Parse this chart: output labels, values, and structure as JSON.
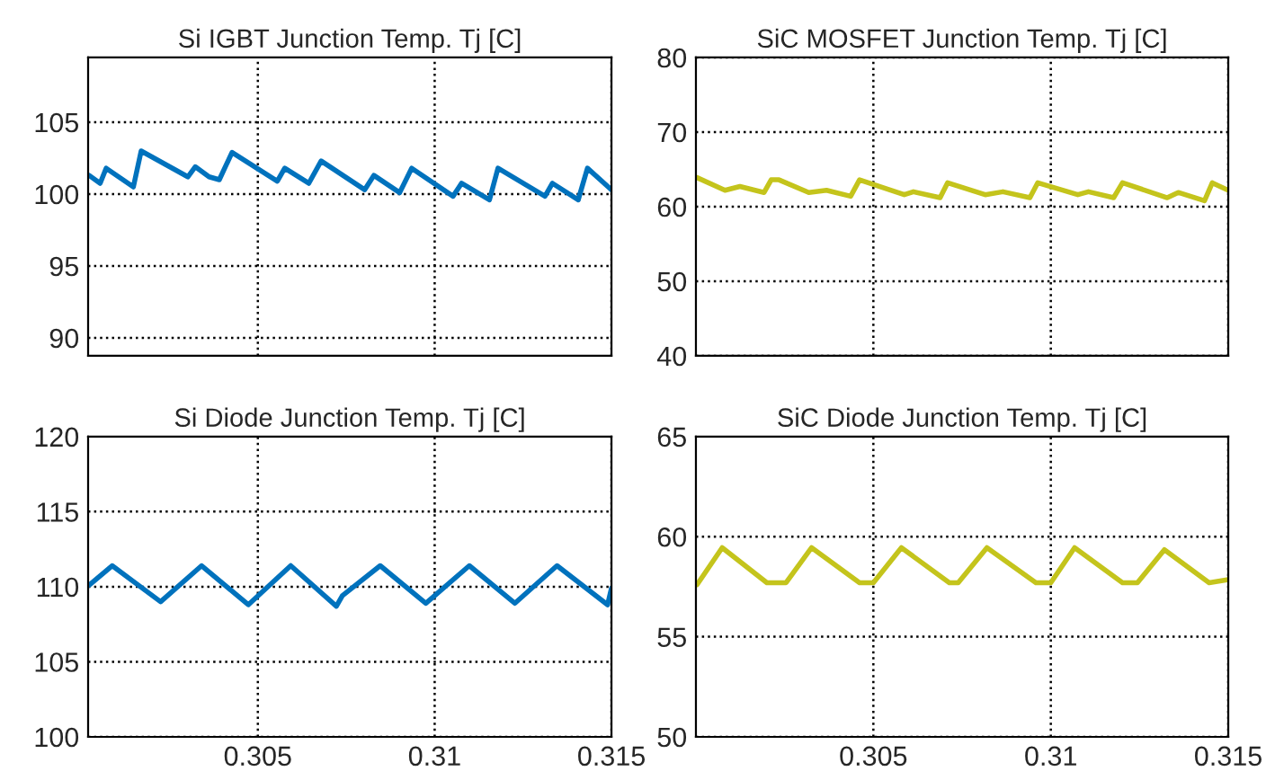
{
  "chart_data": [
    {
      "type": "line",
      "title": "Si IGBT Junction Temp. Tj [C]",
      "xlim": [
        0.3002,
        0.315
      ],
      "xticks": [
        0.305,
        0.31,
        0.315
      ],
      "ylim": [
        88.75,
        109.5
      ],
      "yticks": [
        90,
        95,
        100,
        105
      ],
      "tick_labels": "y",
      "grid": true,
      "line_style": "solid",
      "series": [
        {
          "color": "#0072bd",
          "x": [
            0.30023,
            0.30054,
            0.30071,
            0.30148,
            0.3017,
            0.30302,
            0.30323,
            0.30362,
            0.30391,
            0.30427,
            0.30555,
            0.30576,
            0.30644,
            0.30679,
            0.30802,
            0.30828,
            0.30901,
            0.30935,
            0.31052,
            0.31076,
            0.31155,
            0.31179,
            0.31312,
            0.31333,
            0.31406,
            0.31432,
            0.315
          ],
          "values": [
            101.3,
            100.75,
            101.8,
            100.5,
            103,
            101.2,
            101.9,
            101.2,
            101,
            102.9,
            100.9,
            101.8,
            100.75,
            102.3,
            100.3,
            101.3,
            100.1,
            101.8,
            99.85,
            100.75,
            99.6,
            101.8,
            99.85,
            100.75,
            99.6,
            101.8,
            100.3
          ]
        }
      ]
    },
    {
      "type": "line",
      "title": "SiC MOSFET Junction Temp. Tj [C]",
      "xlim": [
        0.3,
        0.315
      ],
      "xticks": [
        0.305,
        0.31,
        0.315
      ],
      "ylim": [
        40,
        80
      ],
      "yticks": [
        40,
        50,
        60,
        70,
        80
      ],
      "tick_labels": "y",
      "grid": true,
      "line_style": "solid",
      "series": [
        {
          "color": "#c4c41c",
          "x": [
            0.30003,
            0.30082,
            0.30124,
            0.30192,
            0.30212,
            0.30234,
            0.30318,
            0.30368,
            0.30436,
            0.30461,
            0.30587,
            0.30613,
            0.30688,
            0.30709,
            0.30815,
            0.30865,
            0.30941,
            0.30963,
            0.31076,
            0.31106,
            0.31177,
            0.31202,
            0.31328,
            0.31359,
            0.31433,
            0.31455,
            0.315
          ],
          "values": [
            63.9,
            62.2,
            62.7,
            61.9,
            63.6,
            63.6,
            61.9,
            62.2,
            61.4,
            63.6,
            61.6,
            62,
            61.2,
            63.2,
            61.6,
            62,
            61.2,
            63.2,
            61.6,
            62,
            61.2,
            63.2,
            61.2,
            61.9,
            60.8,
            63.2,
            62.2
          ]
        }
      ]
    },
    {
      "type": "line",
      "title": "Si Diode Junction Temp. Tj [C]",
      "xlim": [
        0.3002,
        0.315
      ],
      "xticks": [
        0.305,
        0.31,
        0.315
      ],
      "ylim": [
        100,
        120
      ],
      "yticks": [
        100,
        105,
        110,
        115,
        120
      ],
      "grid": true,
      "line_style": "solid",
      "series": [
        {
          "color": "#0072bd",
          "x": [
            0.30023,
            0.30088,
            0.30225,
            0.30341,
            0.30473,
            0.30593,
            0.30722,
            0.30739,
            0.30846,
            0.30975,
            0.31098,
            0.31227,
            0.31346,
            0.31489,
            0.315
          ],
          "values": [
            110.1,
            111.4,
            109,
            111.4,
            108.8,
            111.4,
            108.7,
            109.4,
            111.4,
            108.9,
            111.4,
            108.9,
            111.4,
            108.8,
            109.9
          ]
        }
      ]
    },
    {
      "type": "line",
      "title": "SiC Diode Junction Temp. Tj [C]",
      "xlim": [
        0.3,
        0.315
      ],
      "xticks": [
        0.305,
        0.31,
        0.315
      ],
      "ylim": [
        50,
        65
      ],
      "yticks": [
        50,
        55,
        60,
        65
      ],
      "grid": true,
      "line_style": "solid",
      "series": [
        {
          "color": "#c4c41c",
          "x": [
            0.30003,
            0.30074,
            0.302,
            0.30254,
            0.30326,
            0.30461,
            0.305,
            0.30579,
            0.30714,
            0.30739,
            0.3082,
            0.30958,
            0.31,
            0.31067,
            0.31202,
            0.31244,
            0.3132,
            0.31446,
            0.315
          ],
          "values": [
            57.6,
            59.45,
            57.7,
            57.7,
            59.45,
            57.7,
            57.7,
            59.45,
            57.7,
            57.7,
            59.45,
            57.7,
            57.7,
            59.45,
            57.7,
            57.7,
            59.35,
            57.7,
            57.85
          ]
        }
      ]
    }
  ]
}
